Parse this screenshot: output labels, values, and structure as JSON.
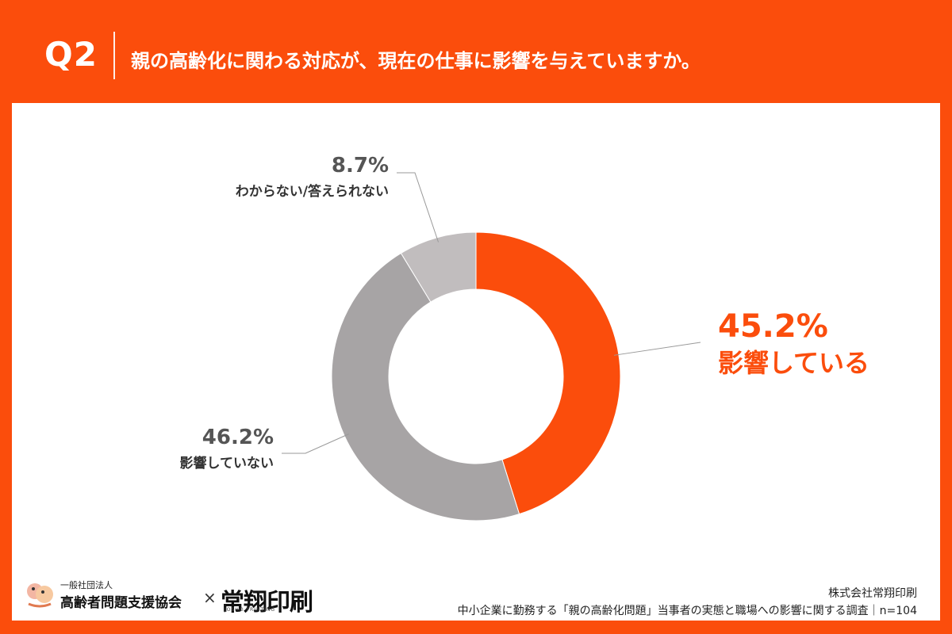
{
  "header": {
    "question_id": "Q2",
    "question": "親の高齢化に関わる対応が、現在の仕事に影響を与えていますか。"
  },
  "chart_data": {
    "type": "pie",
    "donut": true,
    "slices": [
      {
        "label": "影響している",
        "value": 45.2,
        "display": "45.2%",
        "color": "#fb4d0c"
      },
      {
        "label": "影響していない",
        "value": 46.2,
        "display": "46.2%",
        "color": "#a7a4a5"
      },
      {
        "label": "わからない/答えられない",
        "value": 8.7,
        "display": "8.7%",
        "color": "#c1bdbe"
      }
    ]
  },
  "footer": {
    "org_prefix": "一般社団法人",
    "org_name": "高齢者問題支援協会",
    "cross": "×",
    "brand_name": "常翔印刷",
    "brand_sub": "JOSHO PRINTING",
    "company": "株式会社常翔印刷",
    "survey": "中小企業に勤務する「親の高齢化問題」当事者の実態と職場への影響に関する調査｜n=104"
  }
}
